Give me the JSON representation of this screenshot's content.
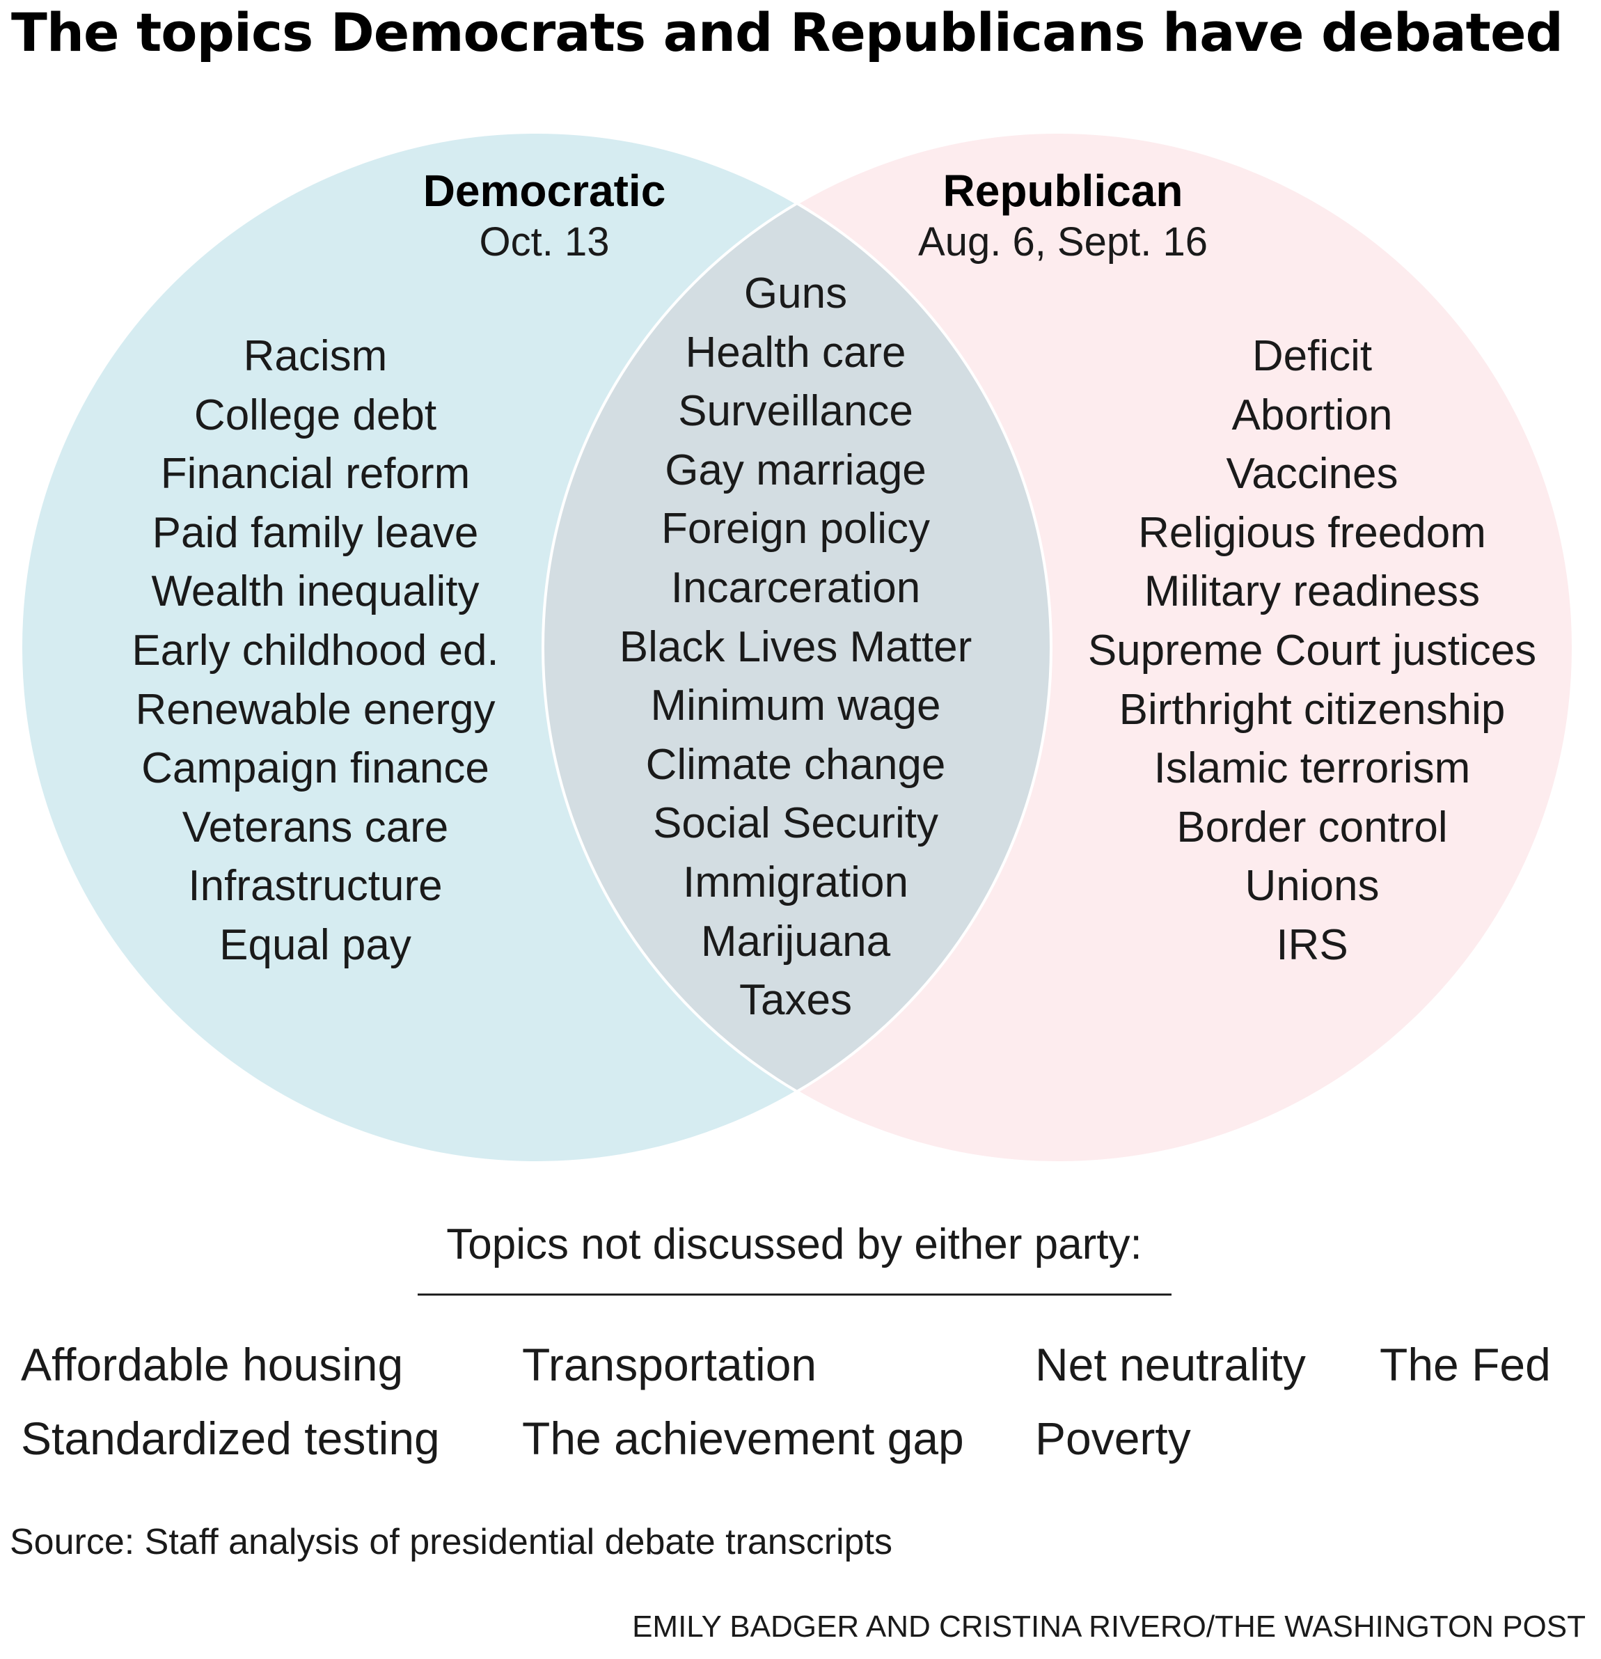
{
  "title": "The topics Democrats and Republicans have debated",
  "colors": {
    "democratic": "#d6ecf1",
    "republican": "#fdecee",
    "overlap": "#d3dde2",
    "outline": "#ffffff"
  },
  "democratic": {
    "label": "Democratic",
    "date": "Oct. 13",
    "topics": [
      "Racism",
      "College debt",
      "Financial reform",
      "Paid family leave",
      "Wealth inequality",
      "Early childhood ed.",
      "Renewable energy",
      "Campaign finance",
      "Veterans care",
      "Infrastructure",
      "Equal pay"
    ]
  },
  "republican": {
    "label": "Republican",
    "date": "Aug. 6, Sept. 16",
    "topics": [
      "Deficit",
      "Abortion",
      "Vaccines",
      "Religious freedom",
      "Military readiness",
      "Supreme Court justices",
      "Birthright citizenship",
      "Islamic terrorism",
      "Border control",
      "Unions",
      "IRS"
    ]
  },
  "both": {
    "topics": [
      "Guns",
      "Health care",
      "Surveillance",
      "Gay marriage",
      "Foreign policy",
      "Incarceration",
      "Black Lives Matter",
      "Minimum wage",
      "Climate change",
      "Social Security",
      "Immigration",
      "Marijuana",
      "Taxes"
    ]
  },
  "neither": {
    "heading": "Topics not discussed by either party:",
    "topics": [
      "Affordable housing",
      "Transportation",
      "Net neutrality",
      "The Fed",
      "Standardized testing",
      "The achievement gap",
      "Poverty"
    ]
  },
  "source": "Source: Staff analysis of presidential debate transcripts",
  "credit": "EMILY BADGER AND CRISTINA RIVERO/THE WASHINGTON POST"
}
